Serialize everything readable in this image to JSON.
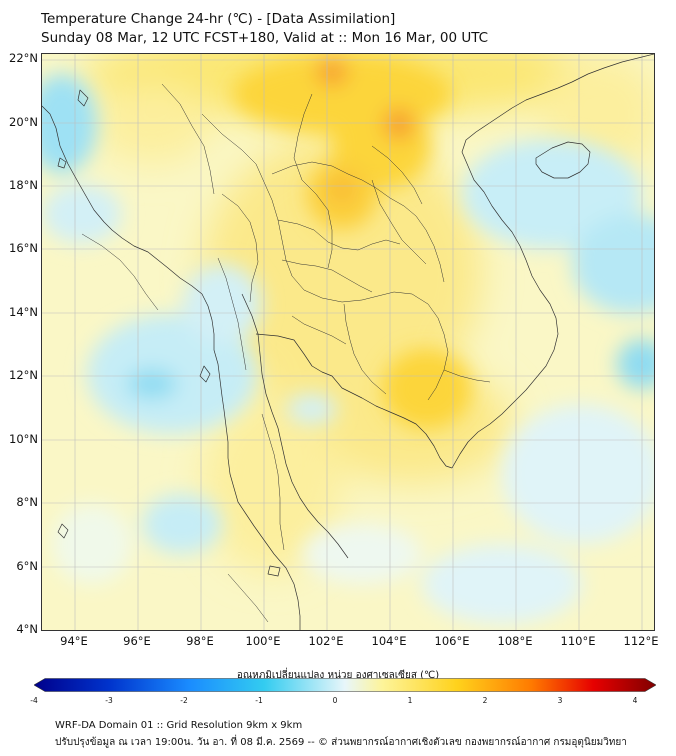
{
  "header": {
    "title_line1": "Temperature Change 24-hr (℃) - [Data Assimilation]",
    "title_line2": "Sunday 08 Mar, 12 UTC FCST+180, Valid at :: Mon 16 Mar, 00 UTC"
  },
  "axes": {
    "lat_labels": [
      "22°N",
      "20°N",
      "18°N",
      "16°N",
      "14°N",
      "12°N",
      "10°N",
      "8°N",
      "6°N",
      "4°N"
    ],
    "lon_labels": [
      "94°E",
      "96°E",
      "98°E",
      "100°E",
      "102°E",
      "104°E",
      "106°E",
      "108°E",
      "110°E",
      "112°E"
    ]
  },
  "colorbar": {
    "title": "อุณหภูมิเปลี่ยนแปลง หน่วย องศาเซลเซียส (℃)",
    "ticks": [
      "-4",
      "-3",
      "-2",
      "-1",
      "0",
      "1",
      "2",
      "3",
      "4"
    ],
    "min": -4,
    "max": 4,
    "colors": [
      "#00008b",
      "#0033cc",
      "#1a8cff",
      "#33ccf0",
      "#e8f6fa",
      "#fdf49a",
      "#ffd21c",
      "#ff7a00",
      "#e60000",
      "#800000"
    ]
  },
  "footer": {
    "line1": "WRF-DA Domain 01 :: Grid Resolution 9km x 9km",
    "line2": "ปรับปรุงข้อมูล ณ เวลา 19:00น. วัน อา. ที่ 08 มี.ค. 2569 -- © ส่วนพยากรณ์อากาศเชิงตัวเลข กองพยากรณ์อากาศ กรมอุตุนิยมวิทยา"
  }
}
